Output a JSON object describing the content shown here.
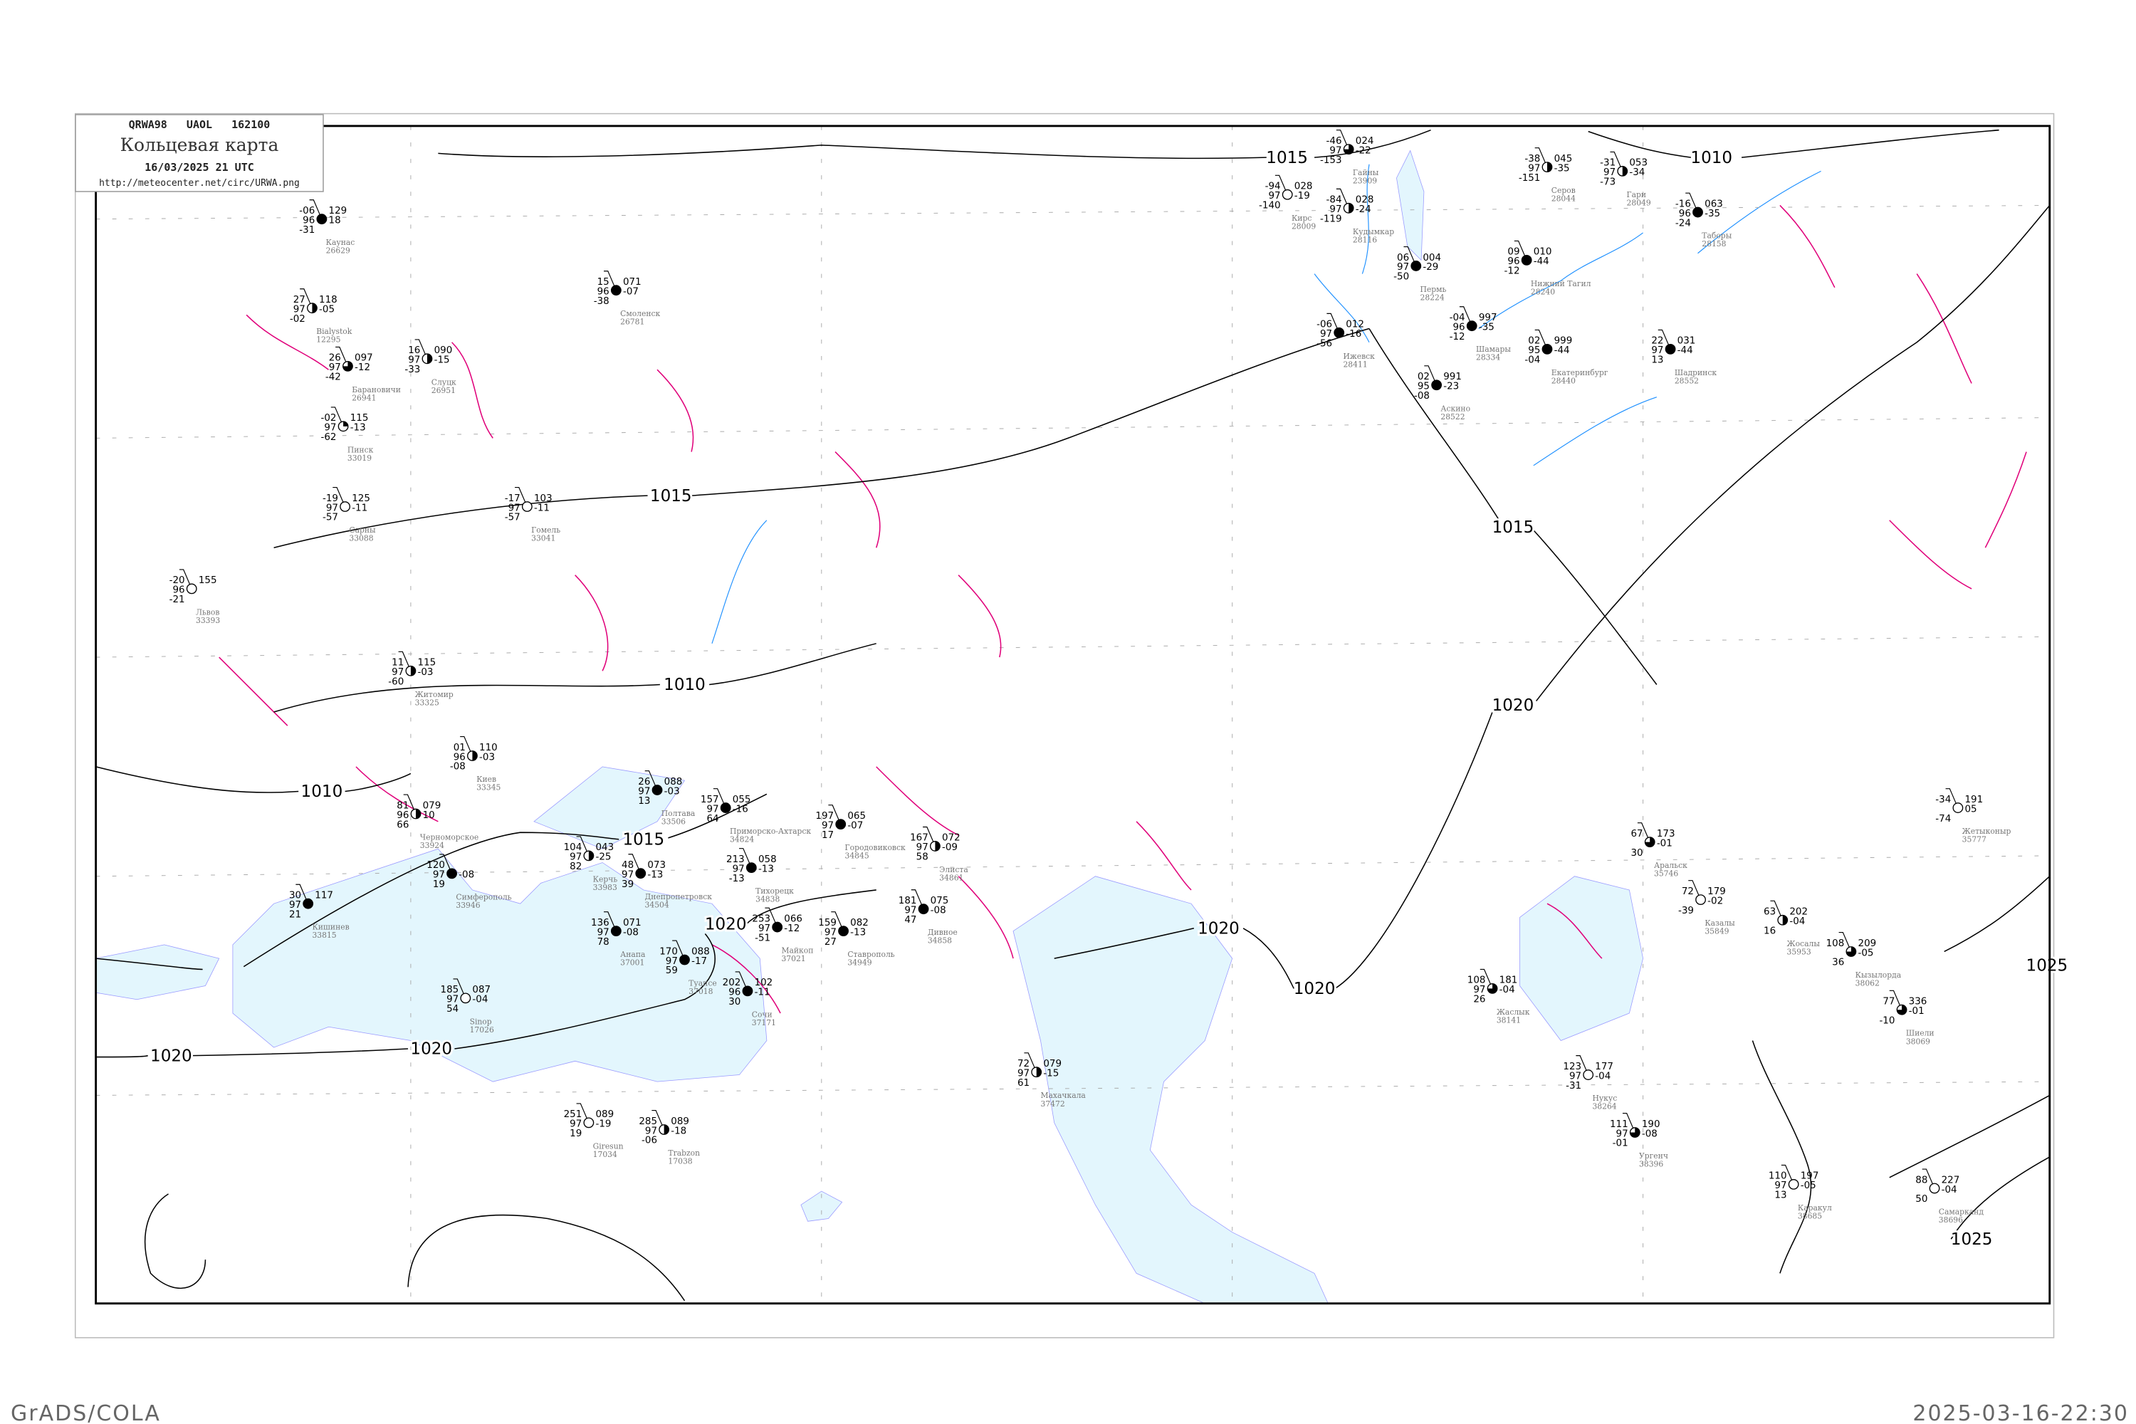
{
  "header": {
    "code_line": "QRWA98   UAOL   162100",
    "title": "Кольцевая карта",
    "datetime": "16/03/2025 21 UTC",
    "url": "http://meteocenter.net/circ/URWA.png"
  },
  "footer": {
    "left": "GrADS/COLA",
    "right": "2025-03-16-22:30"
  },
  "colors": {
    "sea": "#e3f6fd",
    "isobar": "#000000",
    "isallobar": "#e0007a",
    "river": "#1e90ff",
    "coast": "#9999ff",
    "station_name": "#777777"
  },
  "isobar_labels": [
    "1015",
    "1015",
    "1015",
    "1015",
    "1010",
    "1010",
    "1010",
    "1020",
    "1020",
    "1020",
    "1020",
    "1020",
    "1020",
    "1025",
    "1025"
  ],
  "stations": [
    {
      "name": "Гайны",
      "id": "23909",
      "t": "-46",
      "vis": "97",
      "td": "-153",
      "p": "024",
      "dp": "-22",
      "cloud": 0.75
    },
    {
      "name": "Кирс",
      "id": "28009",
      "t": "-94",
      "vis": "97",
      "td": "-140",
      "p": "028",
      "dp": "-19",
      "cloud": 0
    },
    {
      "name": "Кудымкар",
      "id": "28116",
      "t": "-84",
      "vis": "97",
      "td": "-119",
      "p": "028",
      "dp": "-24",
      "cloud": 0.5
    },
    {
      "name": "Серов",
      "id": "28044",
      "t": "-38",
      "vis": "97",
      "td": "-151",
      "p": "045",
      "dp": "-35",
      "cloud": 0.5
    },
    {
      "name": "Гари",
      "id": "28049",
      "t": "-31",
      "vis": "97",
      "td": "-73",
      "p": "053",
      "dp": "-34",
      "cloud": 0.5
    },
    {
      "name": "Таборы",
      "id": "28158",
      "t": "-16",
      "vis": "96",
      "td": "-24",
      "p": "063",
      "dp": "-35",
      "cloud": 1
    },
    {
      "name": "Пермь",
      "id": "28224",
      "t": "06",
      "vis": "97",
      "td": "-50",
      "p": "004",
      "dp": "-29",
      "cloud": 1
    },
    {
      "name": "Нижний Тагил",
      "id": "28240",
      "t": "09",
      "vis": "96",
      "td": "-12",
      "p": "010",
      "dp": "-44",
      "cloud": 1
    },
    {
      "name": "Шамары",
      "id": "28334",
      "t": "-04",
      "vis": "96",
      "td": "-12",
      "p": "997",
      "dp": "-35",
      "cloud": 1
    },
    {
      "name": "Ижевск",
      "id": "28411",
      "t": "-06",
      "vis": "97",
      "td": "-56",
      "p": "012",
      "dp": "-16",
      "cloud": 1
    },
    {
      "name": "Екатеринбург",
      "id": "28440",
      "t": "02",
      "vis": "95",
      "td": "-04",
      "p": "999",
      "dp": "-44",
      "cloud": 1
    },
    {
      "name": "Аскино",
      "id": "28522",
      "t": "02",
      "vis": "95",
      "td": "-08",
      "p": "991",
      "dp": "-23",
      "cloud": 1
    },
    {
      "name": "Шадринск",
      "id": "28552",
      "t": "22",
      "vis": "97",
      "td": "13",
      "p": "031",
      "dp": "-44",
      "cloud": 1
    },
    {
      "name": "Каунас",
      "id": "26629",
      "t": "-06",
      "vis": "96",
      "td": "-31",
      "p": "129",
      "dp": "18",
      "cloud": 1
    },
    {
      "name": "Bialystok",
      "id": "12295",
      "t": "27",
      "vis": "97",
      "td": "-02",
      "p": "118",
      "dp": "-05",
      "cloud": 0.5
    },
    {
      "name": "Барановичи",
      "id": "26941",
      "t": "26",
      "vis": "97",
      "td": "-42",
      "p": "097",
      "dp": "-12",
      "cloud": 0.75
    },
    {
      "name": "Слуцк",
      "id": "26951",
      "t": "16",
      "vis": "97",
      "td": "-33",
      "p": "090",
      "dp": "-15",
      "cloud": 0.5
    },
    {
      "name": "Пинск",
      "id": "33019",
      "t": "-02",
      "vis": "97",
      "td": "-62",
      "p": "115",
      "dp": "-13",
      "cloud": 0.25
    },
    {
      "name": "Сарны",
      "id": "33088",
      "t": "-19",
      "vis": "97",
      "td": "-57",
      "p": "125",
      "dp": "-11",
      "cloud": 0
    },
    {
      "name": "Львов",
      "id": "33393",
      "t": "-20",
      "vis": "96",
      "td": "-21",
      "p": "155",
      "dp": "",
      "cloud": 0
    },
    {
      "name": "Житомир",
      "id": "33325",
      "t": "11",
      "vis": "97",
      "td": "-60",
      "p": "115",
      "dp": "-03",
      "cloud": 0.5
    },
    {
      "name": "Киев",
      "id": "33345",
      "t": "01",
      "vis": "96",
      "td": "-08",
      "p": "110",
      "dp": "-03",
      "cloud": 0.5
    },
    {
      "name": "Гомель",
      "id": "33041",
      "t": "-17",
      "vis": "97",
      "td": "-57",
      "p": "103",
      "dp": "-11",
      "cloud": 0
    },
    {
      "name": "Смоленск",
      "id": "26781",
      "t": "15",
      "vis": "96",
      "td": "-38",
      "p": "071",
      "dp": "-07",
      "cloud": 1
    },
    {
      "name": "Полтава",
      "id": "33506",
      "t": "26",
      "vis": "97",
      "td": "13",
      "p": "088",
      "dp": "-03",
      "cloud": 1
    },
    {
      "name": "Днепропетровск",
      "id": "34504",
      "t": "48",
      "vis": "97",
      "td": "39",
      "p": "073",
      "dp": "-13",
      "cloud": 1
    },
    {
      "name": "Кишинев",
      "id": "33815",
      "t": "30",
      "vis": "97",
      "td": "21",
      "p": "117",
      "dp": "",
      "cloud": 1
    },
    {
      "name": "Черноморское",
      "id": "33924",
      "t": "81",
      "vis": "96",
      "td": "66",
      "p": "079",
      "dp": "10",
      "cloud": 0.5
    },
    {
      "name": "Симферополь",
      "id": "33946",
      "t": "120",
      "vis": "97",
      "td": "19",
      "p": "",
      "dp": "-08",
      "cloud": 1
    },
    {
      "name": "Керчь",
      "id": "33983",
      "t": "104",
      "vis": "97",
      "td": "82",
      "p": "043",
      "dp": "-25",
      "cloud": 0.5
    },
    {
      "name": "Анапа",
      "id": "37001",
      "t": "136",
      "vis": "97",
      "td": "78",
      "p": "071",
      "dp": "-08",
      "cloud": 1
    },
    {
      "name": "Приморско-Ахтарск",
      "id": "34824",
      "t": "157",
      "vis": "97",
      "td": "64",
      "p": "055",
      "dp": "-16",
      "cloud": 1
    },
    {
      "name": "Тихорецк",
      "id": "34838",
      "t": "213",
      "vis": "97",
      "td": "-13",
      "p": "058",
      "dp": "-13",
      "cloud": 1
    },
    {
      "name": "Городовиковск",
      "id": "34845",
      "t": "197",
      "vis": "97",
      "td": "17",
      "p": "065",
      "dp": "-07",
      "cloud": 1
    },
    {
      "name": "Майкоп",
      "id": "37021",
      "t": "253",
      "vis": "97",
      "td": "-51",
      "p": "066",
      "dp": "-12",
      "cloud": 1
    },
    {
      "name": "Туапсе",
      "id": "37018",
      "t": "170",
      "vis": "97",
      "td": "59",
      "p": "088",
      "dp": "-17",
      "cloud": 1
    },
    {
      "name": "Сочи",
      "id": "37171",
      "t": "202",
      "vis": "96",
      "td": "30",
      "p": "102",
      "dp": "-11",
      "cloud": 1
    },
    {
      "name": "Ставрополь",
      "id": "34949",
      "t": "159",
      "vis": "97",
      "td": "27",
      "p": "082",
      "dp": "-13",
      "cloud": 1
    },
    {
      "name": "Элиста",
      "id": "34861",
      "t": "167",
      "vis": "97",
      "td": "58",
      "p": "072",
      "dp": "-09",
      "cloud": 0.5
    },
    {
      "name": "Дивное",
      "id": "34858",
      "t": "181",
      "vis": "97",
      "td": "47",
      "p": "075",
      "dp": "-08",
      "cloud": 1
    },
    {
      "name": "Sinop",
      "id": "17026",
      "t": "185",
      "vis": "97",
      "td": "54",
      "p": "087",
      "dp": "-04",
      "cloud": 0
    },
    {
      "name": "Trabzon",
      "id": "17038",
      "t": "285",
      "vis": "97",
      "td": "-06",
      "p": "089",
      "dp": "-18",
      "cloud": 0.5
    },
    {
      "name": "Giresun",
      "id": "17034",
      "t": "251",
      "vis": "97",
      "td": "19",
      "p": "089",
      "dp": "-19",
      "cloud": 0
    },
    {
      "name": "Махачкала",
      "id": "37472",
      "t": "72",
      "vis": "97",
      "td": "61",
      "p": "079",
      "dp": "-15",
      "cloud": 0.5
    },
    {
      "name": "Аральск",
      "id": "35746",
      "t": "67",
      "vis": "",
      "td": "30",
      "p": "173",
      "dp": "-01",
      "cloud": 0.75
    },
    {
      "name": "Казалы",
      "id": "35849",
      "t": "72",
      "vis": "",
      "td": "-39",
      "p": "179",
      "dp": "-02",
      "cloud": 0
    },
    {
      "name": "Жосалы",
      "id": "35953",
      "t": "63",
      "vis": "",
      "td": "16",
      "p": "202",
      "dp": "-04",
      "cloud": 0.5
    },
    {
      "name": "Кызылорда",
      "id": "38062",
      "t": "108",
      "vis": "",
      "td": "36",
      "p": "209",
      "dp": "-05",
      "cloud": 0.75
    },
    {
      "name": "Шиели",
      "id": "38069",
      "t": "77",
      "vis": "",
      "td": "-10",
      "p": "336",
      "dp": "-01",
      "cloud": 0.75
    },
    {
      "name": "Жетыконыр",
      "id": "35777",
      "t": "-34",
      "vis": "",
      "td": "-74",
      "p": "191",
      "dp": "05",
      "cloud": 0
    },
    {
      "name": "Жаслык",
      "id": "38141",
      "t": "108",
      "vis": "97",
      "td": "26",
      "p": "181",
      "dp": "-04",
      "cloud": 0.75
    },
    {
      "name": "Нукус",
      "id": "38264",
      "t": "123",
      "vis": "97",
      "td": "-31",
      "p": "177",
      "dp": "-04",
      "cloud": 0
    },
    {
      "name": "Ургенч",
      "id": "38396",
      "t": "111",
      "vis": "97",
      "td": "-01",
      "p": "190",
      "dp": "-08",
      "cloud": 0.75
    },
    {
      "name": "Самарканд",
      "id": "38696",
      "t": "88",
      "vis": "",
      "td": "50",
      "p": "227",
      "dp": "-04",
      "cloud": 0
    },
    {
      "name": "Каракул",
      "id": "38685",
      "t": "110",
      "vis": "97",
      "td": "13",
      "p": "197",
      "dp": "-05",
      "cloud": 0
    }
  ]
}
